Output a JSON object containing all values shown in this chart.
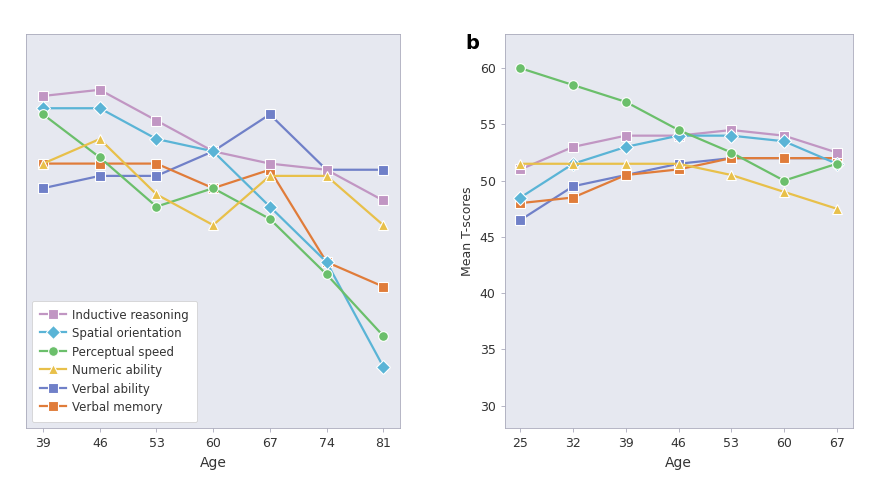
{
  "panel_a": {
    "ages": [
      39,
      46,
      53,
      60,
      67,
      74,
      81
    ],
    "series": {
      "Inductive reasoning": {
        "values": [
          57.0,
          57.5,
          55.0,
          52.5,
          51.5,
          51.0,
          48.5
        ],
        "color": "#c196c3",
        "marker": "s",
        "zorder": 4
      },
      "Spatial orientation": {
        "values": [
          56.0,
          56.0,
          53.5,
          52.5,
          48.0,
          43.5,
          35.0
        ],
        "color": "#5ab4d6",
        "marker": "D",
        "zorder": 4
      },
      "Perceptual speed": {
        "values": [
          55.5,
          52.0,
          48.0,
          49.5,
          47.0,
          42.5,
          37.5
        ],
        "color": "#6bbf6b",
        "marker": "o",
        "zorder": 4
      },
      "Numeric ability": {
        "values": [
          51.5,
          53.5,
          49.0,
          46.5,
          50.5,
          50.5,
          46.5
        ],
        "color": "#e8c04a",
        "marker": "^",
        "zorder": 4
      },
      "Verbal ability": {
        "values": [
          49.5,
          50.5,
          50.5,
          52.5,
          55.5,
          51.0,
          51.0
        ],
        "color": "#7080c8",
        "marker": "s",
        "zorder": 3
      },
      "Verbal memory": {
        "values": [
          51.5,
          51.5,
          51.5,
          49.5,
          51.0,
          43.5,
          41.5
        ],
        "color": "#e07c3a",
        "marker": "s",
        "zorder": 3
      }
    },
    "ylim": [
      30,
      62
    ],
    "yticks": [],
    "xlabel": "Age",
    "ylabel": "",
    "bg_color": "#e6e8f0"
  },
  "panel_b": {
    "ages": [
      25,
      32,
      39,
      46,
      53,
      60,
      67
    ],
    "series": {
      "Inductive reasoning": {
        "values": [
          51.0,
          53.0,
          54.0,
          54.0,
          54.5,
          54.0,
          52.5
        ],
        "color": "#c196c3",
        "marker": "s",
        "zorder": 4
      },
      "Spatial orientation": {
        "values": [
          48.5,
          51.5,
          53.0,
          54.0,
          54.0,
          53.5,
          51.5
        ],
        "color": "#5ab4d6",
        "marker": "D",
        "zorder": 4
      },
      "Perceptual speed": {
        "values": [
          60.0,
          58.5,
          57.0,
          54.5,
          52.5,
          50.0,
          51.5
        ],
        "color": "#6bbf6b",
        "marker": "o",
        "zorder": 4
      },
      "Numeric ability": {
        "values": [
          51.5,
          51.5,
          51.5,
          51.5,
          50.5,
          49.0,
          47.5
        ],
        "color": "#e8c04a",
        "marker": "^",
        "zorder": 4
      },
      "Verbal ability": {
        "values": [
          46.5,
          49.5,
          50.5,
          51.5,
          52.0,
          52.0,
          52.0
        ],
        "color": "#7080c8",
        "marker": "s",
        "zorder": 3
      },
      "Verbal memory": {
        "values": [
          48.0,
          48.5,
          50.5,
          51.0,
          52.0,
          52.0,
          52.0
        ],
        "color": "#e07c3a",
        "marker": "s",
        "zorder": 3
      }
    },
    "ylim": [
      28,
      63
    ],
    "yticks": [
      30,
      35,
      40,
      45,
      50,
      55,
      60
    ],
    "xlabel": "Age",
    "ylabel": "Mean T-scores",
    "bg_color": "#e6e8f0",
    "panel_label": "b"
  },
  "outer_bg": "#ffffff",
  "line_width": 1.6,
  "marker_size": 7,
  "legend_series": [
    "Inductive reasoning",
    "Spatial orientation",
    "Perceptual speed",
    "Numeric ability",
    "Verbal ability",
    "Verbal memory"
  ]
}
